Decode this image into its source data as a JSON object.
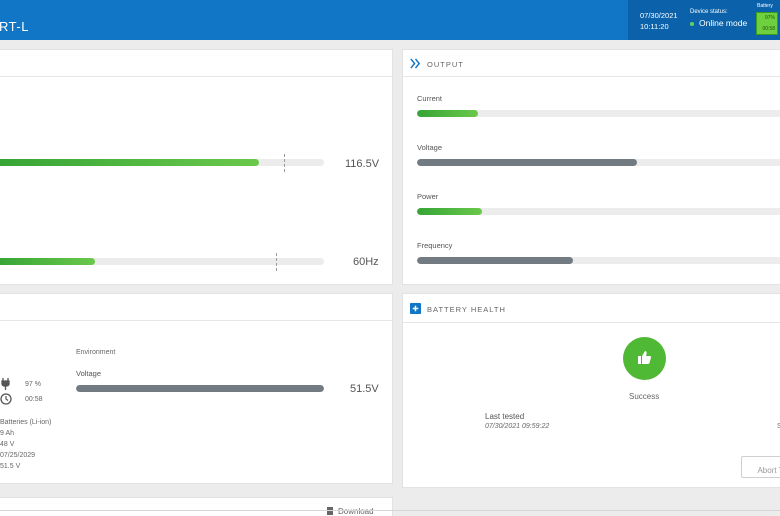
{
  "header": {
    "title": "RT-L",
    "date": "07/30/2021",
    "time": "10:11:20",
    "status_label": "Device status:",
    "status": "Online mode",
    "battery_label": "Battery",
    "battery_top": "97%",
    "battery_bottom": "00:58"
  },
  "input": {
    "voltage_value": "116.5V",
    "voltage_fill": 0.8,
    "frequency_value": "60Hz",
    "frequency_fill": 0.3
  },
  "output": {
    "title": "OUTPUT",
    "rows": [
      {
        "label": "Current",
        "fill": 0.16,
        "color": "green"
      },
      {
        "label": "Voltage",
        "fill": 0.58,
        "color": "gray"
      },
      {
        "label": "Power",
        "fill": 0.17,
        "color": "green"
      },
      {
        "label": "Frequency",
        "fill": 0.41,
        "color": "gray"
      }
    ]
  },
  "battery": {
    "charge": "97 %",
    "runtime": "00:58",
    "type": "Batteries (Li-ion)",
    "capacity": "9 Ah",
    "nominal_voltage": "48 V",
    "replace_date": "07/25/2029",
    "voltage": "51.5 V",
    "environment_label": "Environment",
    "voltage_label": "Voltage",
    "voltage_value": "51.5V",
    "voltage_fill": 1.0
  },
  "battery_health": {
    "title": "BATTERY HEALTH",
    "result": "Success",
    "last_tested_label": "Last tested",
    "last_tested": "07/30/2021 09:59:22",
    "abort_label": "Abort T"
  },
  "bottom": {
    "download_label": "Download"
  },
  "colors": {
    "header": "#1176c5",
    "green": "#4fb834",
    "gray": "#737b82"
  }
}
